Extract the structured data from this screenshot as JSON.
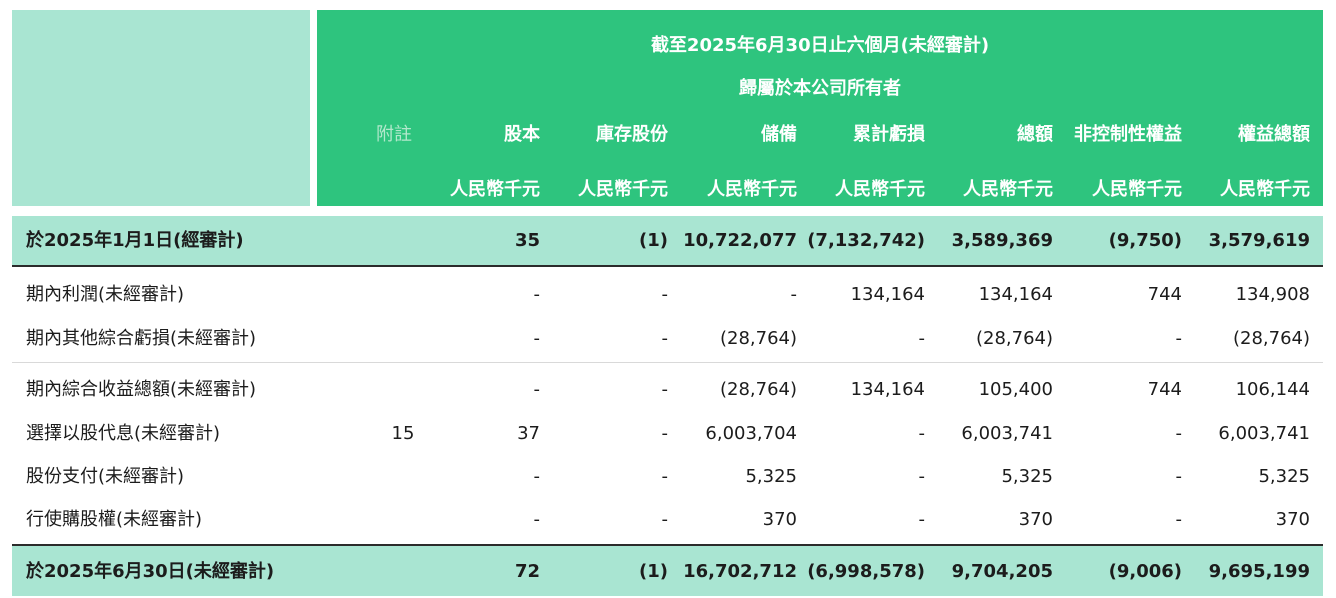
{
  "header": {
    "period": "截至2025年6月30日止六個月(未經審計)",
    "attributable": "歸屬於本公司所有者",
    "col_note": "附註",
    "columns": [
      "股本",
      "庫存股份",
      "儲備",
      "累計虧損",
      "總額",
      "非控制性權益",
      "權益總額"
    ],
    "unit": "人民幣千元"
  },
  "rows": [
    {
      "label": "於2025年1月1日(經審計)",
      "note": "",
      "values": [
        "35",
        "(1)",
        "10,722,077",
        "(7,132,742)",
        "3,589,369",
        "(9,750)",
        "3,579,619"
      ]
    },
    {
      "label": "期內利潤(未經審計)",
      "note": "",
      "values": [
        "-",
        "-",
        "-",
        "134,164",
        "134,164",
        "744",
        "134,908"
      ]
    },
    {
      "label": "期內其他綜合虧損(未經審計)",
      "note": "",
      "values": [
        "-",
        "-",
        "(28,764)",
        "-",
        "(28,764)",
        "-",
        "(28,764)"
      ]
    },
    {
      "label": "期內綜合收益總額(未經審計)",
      "note": "",
      "values": [
        "-",
        "-",
        "(28,764)",
        "134,164",
        "105,400",
        "744",
        "106,144"
      ]
    },
    {
      "label": "選擇以股代息(未經審計)",
      "note": "15",
      "values": [
        "37",
        "-",
        "6,003,704",
        "-",
        "6,003,741",
        "-",
        "6,003,741"
      ]
    },
    {
      "label": "股份支付(未經審計)",
      "note": "",
      "values": [
        "-",
        "-",
        "5,325",
        "-",
        "5,325",
        "-",
        "5,325"
      ]
    },
    {
      "label": "行使購股權(未經審計)",
      "note": "",
      "values": [
        "-",
        "-",
        "370",
        "-",
        "370",
        "-",
        "370"
      ]
    },
    {
      "label": "於2025年6月30日(未經審計)",
      "note": "",
      "values": [
        "72",
        "(1)",
        "16,702,712",
        "(6,998,578)",
        "9,704,205",
        "(9,006)",
        "9,695,199"
      ]
    }
  ]
}
